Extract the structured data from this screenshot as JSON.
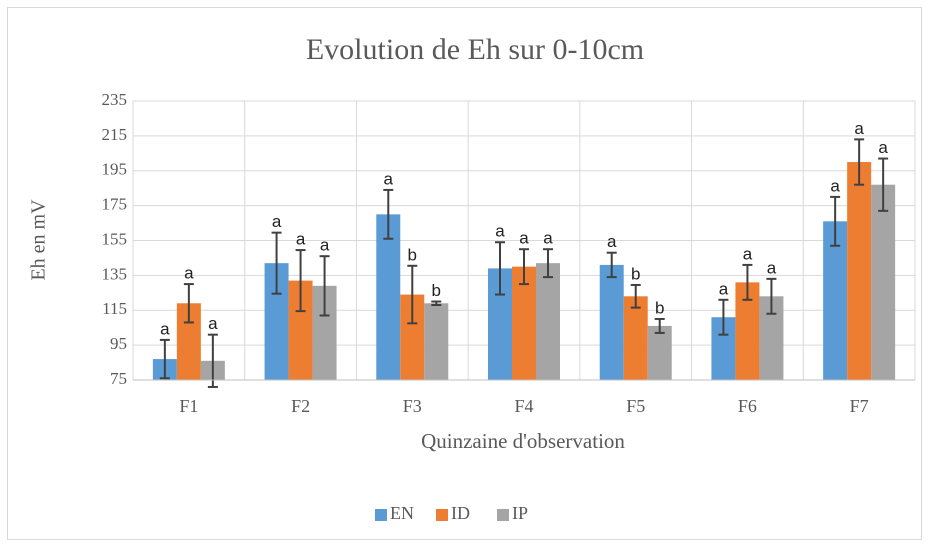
{
  "chart_data": {
    "type": "bar",
    "title": "Evolution de Eh sur 0-10cm",
    "x_label": "Quinzaine d'observation",
    "y_label": "Eh en mV",
    "categories": [
      "F1",
      "F2",
      "F3",
      "F4",
      "F5",
      "F6",
      "F7"
    ],
    "series": [
      {
        "name": "EN",
        "color": "#5b9bd5",
        "values": [
          87,
          142,
          170,
          139,
          141,
          111,
          166
        ],
        "errors": [
          11,
          17.5,
          14,
          15,
          7,
          10,
          14
        ],
        "labels": [
          "a",
          "a",
          "a",
          "a",
          "a",
          "a",
          "a"
        ]
      },
      {
        "name": "ID",
        "color": "#ed7d31",
        "values": [
          119,
          132,
          124,
          140,
          123,
          131,
          200
        ],
        "errors": [
          11,
          17.5,
          16.5,
          10,
          6.5,
          10,
          13
        ],
        "labels": [
          "a",
          "a",
          "b",
          "a",
          "b",
          "a",
          "a"
        ]
      },
      {
        "name": "IP",
        "color": "#a5a5a5",
        "values": [
          86,
          129,
          119,
          142,
          106,
          123,
          187
        ],
        "errors": [
          15,
          17,
          1,
          8,
          4,
          10,
          15
        ],
        "labels": [
          "a",
          "a",
          "b",
          "a",
          "b",
          "a",
          "a"
        ]
      }
    ],
    "ylim": [
      75,
      235
    ],
    "yticks": [
      75,
      95,
      115,
      135,
      155,
      175,
      195,
      215,
      235
    ],
    "grid": true,
    "legend": "bottom"
  }
}
